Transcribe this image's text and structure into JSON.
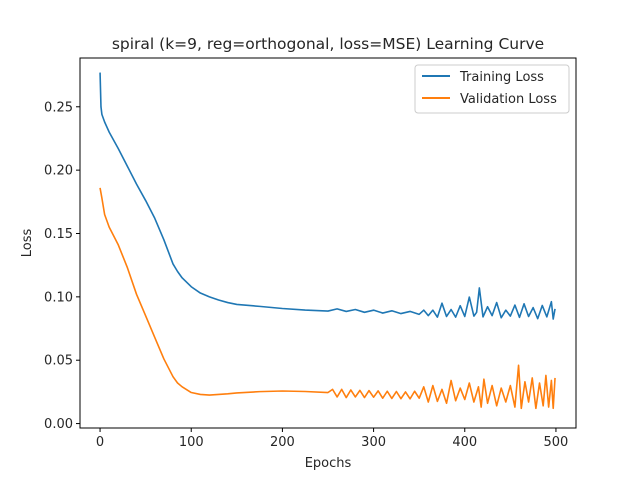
{
  "chart_data": {
    "type": "line",
    "title": "spiral (k=9, reg=orthogonal, loss=MSE) Learning Curve",
    "xlabel": "Epochs",
    "ylabel": "Loss",
    "xlim": [
      -22,
      522
    ],
    "ylim": [
      -0.0035,
      0.2885
    ],
    "xticks": [
      0,
      100,
      200,
      300,
      400,
      500
    ],
    "xtick_labels": [
      "0",
      "100",
      "200",
      "300",
      "400",
      "500"
    ],
    "yticks": [
      0.0,
      0.05,
      0.1,
      0.15,
      0.2,
      0.25
    ],
    "ytick_labels": [
      "0.00",
      "0.05",
      "0.10",
      "0.15",
      "0.20",
      "0.25"
    ],
    "grid": false,
    "legend_position": "upper right",
    "series": [
      {
        "name": "Training Loss",
        "color": "#1f77b4",
        "x": [
          0,
          1,
          2,
          5,
          10,
          20,
          30,
          40,
          50,
          60,
          70,
          80,
          85,
          90,
          100,
          110,
          120,
          130,
          140,
          150,
          175,
          200,
          225,
          250,
          260,
          270,
          280,
          290,
          300,
          310,
          320,
          330,
          340,
          350,
          355,
          360,
          365,
          370,
          375,
          380,
          385,
          390,
          395,
          400,
          405,
          410,
          413,
          416,
          420,
          425,
          430,
          435,
          440,
          445,
          450,
          455,
          460,
          465,
          470,
          475,
          480,
          485,
          490,
          495,
          497,
          499
        ],
        "y": [
          0.277,
          0.25,
          0.244,
          0.238,
          0.23,
          0.217,
          0.203,
          0.189,
          0.176,
          0.162,
          0.145,
          0.126,
          0.12,
          0.115,
          0.108,
          0.103,
          0.1,
          0.0975,
          0.0955,
          0.094,
          0.0925,
          0.0908,
          0.0896,
          0.0888,
          0.0905,
          0.0885,
          0.09,
          0.0878,
          0.0895,
          0.0872,
          0.089,
          0.0868,
          0.0885,
          0.0862,
          0.0895,
          0.0852,
          0.0895,
          0.084,
          0.095,
          0.0845,
          0.09,
          0.084,
          0.093,
          0.0845,
          0.0998,
          0.0848,
          0.0878,
          0.107,
          0.0842,
          0.0922,
          0.0852,
          0.0955,
          0.0835,
          0.0895,
          0.0848,
          0.0935,
          0.0838,
          0.0945,
          0.0845,
          0.0915,
          0.0828,
          0.0932,
          0.0842,
          0.0962,
          0.0825,
          0.0905
        ]
      },
      {
        "name": "Validation Loss",
        "color": "#ff7f0e",
        "x": [
          0,
          2,
          5,
          10,
          20,
          30,
          40,
          50,
          60,
          70,
          80,
          85,
          90,
          100,
          110,
          120,
          130,
          140,
          150,
          175,
          200,
          225,
          250,
          255,
          260,
          265,
          270,
          275,
          280,
          285,
          290,
          295,
          300,
          305,
          310,
          315,
          320,
          325,
          330,
          335,
          340,
          345,
          350,
          355,
          360,
          365,
          370,
          375,
          380,
          385,
          390,
          395,
          400,
          405,
          410,
          415,
          418,
          421,
          425,
          430,
          435,
          440,
          445,
          450,
          455,
          459,
          462,
          466,
          470,
          474,
          478,
          482,
          486,
          489,
          492,
          495,
          497,
          499
        ],
        "y": [
          0.186,
          0.178,
          0.165,
          0.155,
          0.141,
          0.123,
          0.102,
          0.085,
          0.068,
          0.051,
          0.037,
          0.032,
          0.029,
          0.0245,
          0.023,
          0.0225,
          0.023,
          0.0235,
          0.0242,
          0.0252,
          0.0257,
          0.0253,
          0.0245,
          0.027,
          0.021,
          0.027,
          0.0205,
          0.0265,
          0.021,
          0.0262,
          0.0205,
          0.026,
          0.0208,
          0.0258,
          0.02,
          0.0255,
          0.0198,
          0.0253,
          0.0196,
          0.025,
          0.0195,
          0.0255,
          0.02,
          0.029,
          0.017,
          0.03,
          0.0175,
          0.027,
          0.016,
          0.034,
          0.018,
          0.028,
          0.019,
          0.032,
          0.017,
          0.029,
          0.013,
          0.035,
          0.016,
          0.03,
          0.014,
          0.028,
          0.017,
          0.03,
          0.013,
          0.046,
          0.012,
          0.033,
          0.017,
          0.036,
          0.012,
          0.032,
          0.014,
          0.038,
          0.013,
          0.034,
          0.012,
          0.036
        ]
      }
    ]
  }
}
